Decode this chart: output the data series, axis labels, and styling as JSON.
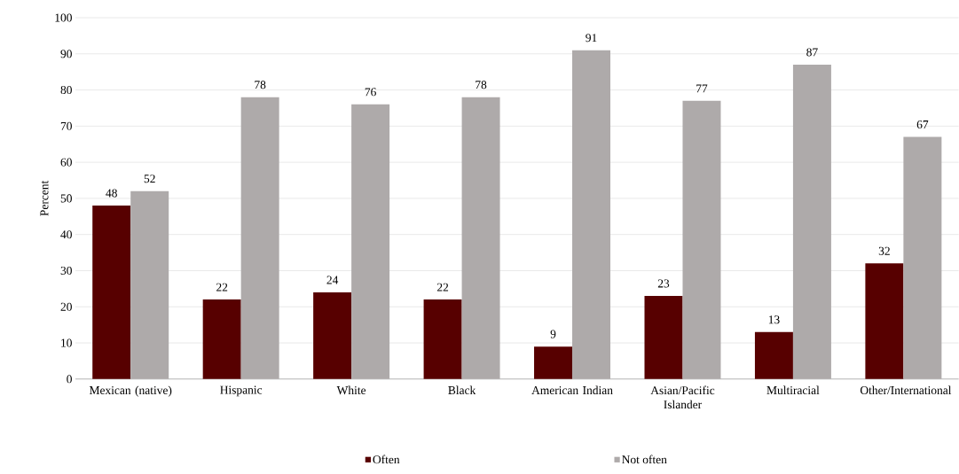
{
  "chart_data": {
    "type": "bar",
    "ylabel": "Percent",
    "categories": [
      "Mexican (native)",
      "Hispanic",
      "White",
      "Black",
      "American Indian",
      "Asian/Pacific Islander",
      "Multiracial",
      "Other/International"
    ],
    "series": [
      {
        "name": "Often",
        "color": "#570000",
        "values": [
          48,
          22,
          24,
          22,
          9,
          23,
          13,
          32
        ]
      },
      {
        "name": "Not often",
        "color": "#aeaaaa",
        "values": [
          52,
          78,
          76,
          78,
          91,
          77,
          87,
          67
        ]
      }
    ],
    "ylim": [
      0,
      100
    ],
    "yticks": [
      0,
      10,
      20,
      30,
      40,
      50,
      60,
      70,
      80,
      90,
      100
    ],
    "grid": "y",
    "legend": "bottom",
    "data_labels": true
  }
}
